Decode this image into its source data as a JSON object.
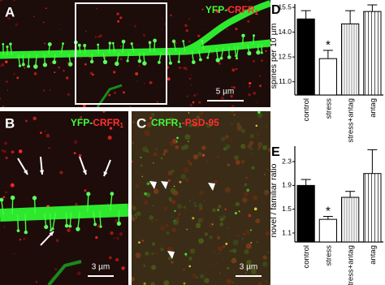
{
  "panels": {
    "a": {
      "label": "A",
      "stain": [
        "YFP-",
        "CRFR",
        "1"
      ],
      "scale": "5 µm"
    },
    "b": {
      "label": "B",
      "stain": [
        "YFP-",
        "CRFR",
        "1"
      ],
      "scale": "3 µm"
    },
    "c": {
      "label": "C",
      "stain": [
        "CRFR",
        "1",
        "-PSD-95"
      ],
      "scale": "3 µm"
    }
  },
  "chart_data": [
    {
      "type": "bar",
      "panel_label": "D",
      "y_label": "spines per 10 µm",
      "categories": [
        "control",
        "stress",
        "stress+antag",
        "antag"
      ],
      "values": [
        14.8,
        12.4,
        14.5,
        15.25
      ],
      "errors": [
        0.5,
        0.5,
        0.8,
        0.4
      ],
      "fills": [
        "black",
        "white",
        "hatched",
        "hatched"
      ],
      "ylim": [
        10.2,
        15.7
      ],
      "yticks": [
        15.5,
        {
          "value": 14,
          "label": "14.0"
        },
        12.5,
        {
          "value": 11,
          "label": "11.0"
        }
      ],
      "annotation": {
        "text": "*",
        "category": "stress"
      }
    },
    {
      "type": "bar",
      "panel_label": "E",
      "y_label": "novel / familiar ratio",
      "categories": [
        "control",
        "stress",
        "stress+antag",
        "antag"
      ],
      "values": [
        1.9,
        1.33,
        1.7,
        2.1
      ],
      "errors": [
        0.1,
        0.05,
        0.1,
        0.4
      ],
      "fills": [
        "black",
        "white",
        "hatched",
        "hatched"
      ],
      "ylim": [
        0.95,
        2.56
      ],
      "yticks": [
        2.3,
        1.9,
        1.5,
        1.1
      ],
      "annotation": {
        "text": "*",
        "category": "stress"
      }
    }
  ]
}
